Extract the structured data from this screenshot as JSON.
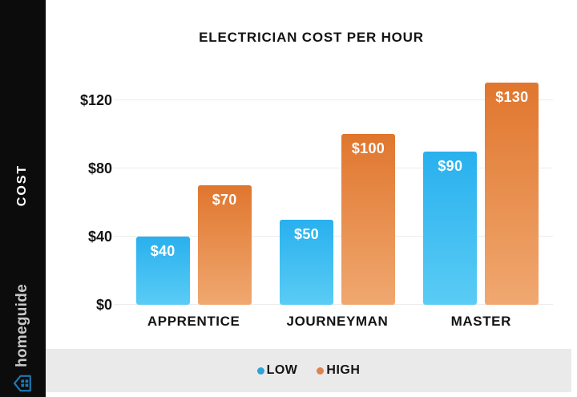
{
  "sidebar": {
    "axis_label": "COST",
    "brand": {
      "name": "homeguide",
      "icon_color": "#1e78b2",
      "text_color": "#c9c9c9"
    }
  },
  "chart_data": {
    "type": "bar",
    "title": "ELECTRICIAN COST PER HOUR",
    "categories": [
      "APPRENTICE",
      "JOURNEYMAN",
      "MASTER"
    ],
    "series": [
      {
        "name": "LOW",
        "values": [
          40,
          50,
          90
        ],
        "labels": [
          "$40",
          "$50",
          "$90"
        ],
        "color_top": "#29b0ee",
        "color_bottom": "#5accf5"
      },
      {
        "name": "HIGH",
        "values": [
          70,
          100,
          130
        ],
        "labels": [
          "$70",
          "$100",
          "$130"
        ],
        "color_top": "#e0762e",
        "color_bottom": "#f0a870"
      }
    ],
    "y_ticks": [
      {
        "label": "$120",
        "value": 120
      },
      {
        "label": "$80",
        "value": 80
      },
      {
        "label": "$40",
        "value": 40
      },
      {
        "label": "$0",
        "value": 0
      }
    ],
    "ylim": [
      0,
      133
    ],
    "ylabel": "COST",
    "grid": true,
    "legend_position": "bottom"
  },
  "legend": {
    "items": [
      {
        "label": "LOW",
        "color": "#31a3d6"
      },
      {
        "label": "HIGH",
        "color": "#dd8350"
      }
    ]
  },
  "colors": {
    "sidebar_bg": "#0c0c0c",
    "chart_bg": "#ffffff",
    "legend_strip_bg": "#eaeaea",
    "gridline": "#ececec",
    "text": "#141414"
  }
}
